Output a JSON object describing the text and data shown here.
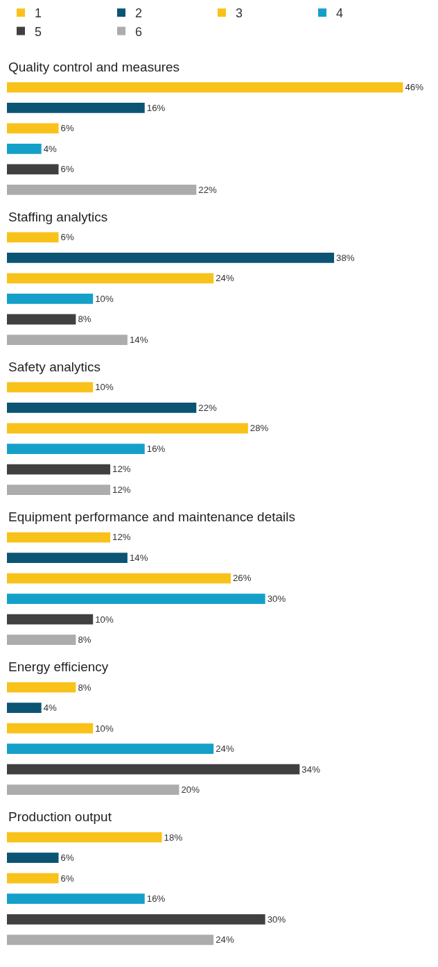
{
  "chart_data": {
    "type": "bar",
    "orientation": "horizontal",
    "legend": "top left",
    "categories": [
      "Quality control and measures",
      "Staffing analytics",
      "Safety analytics",
      "Equipment performance and maintenance details",
      "Energy efficiency",
      "Production output"
    ],
    "series": [
      {
        "name": "1",
        "color": "#f9c21a",
        "values": [
          46,
          6,
          10,
          12,
          8,
          18
        ],
        "value_labels": [
          "46%",
          "6%",
          "10%",
          "12%",
          "8%",
          "18%"
        ]
      },
      {
        "name": "2",
        "color": "#0b5474",
        "values": [
          16,
          38,
          22,
          14,
          4,
          6
        ],
        "value_labels": [
          "16%",
          "38%",
          "22%",
          "14%",
          "4%",
          "6%"
        ]
      },
      {
        "name": "3",
        "color": "#f9c21a",
        "values": [
          6,
          24,
          28,
          26,
          10,
          6
        ],
        "value_labels": [
          "6%",
          "24%",
          "28%",
          "26%",
          "10%",
          "6%"
        ]
      },
      {
        "name": "4",
        "color": "#14a0c9",
        "values": [
          4,
          10,
          16,
          30,
          24,
          16
        ],
        "value_labels": [
          "4%",
          "10%",
          "16%",
          "30%",
          "24%",
          "16%"
        ]
      },
      {
        "name": "5",
        "color": "#404040",
        "values": [
          6,
          8,
          12,
          10,
          34,
          30
        ],
        "value_labels": [
          "6%",
          "8%",
          "12%",
          "10%",
          "34%",
          "30%"
        ]
      },
      {
        "name": "6",
        "color": "#acacac",
        "values": [
          22,
          14,
          12,
          8,
          20,
          24
        ],
        "value_labels": [
          "22%",
          "14%",
          "12%",
          "8%",
          "20%",
          "24%"
        ]
      }
    ]
  }
}
